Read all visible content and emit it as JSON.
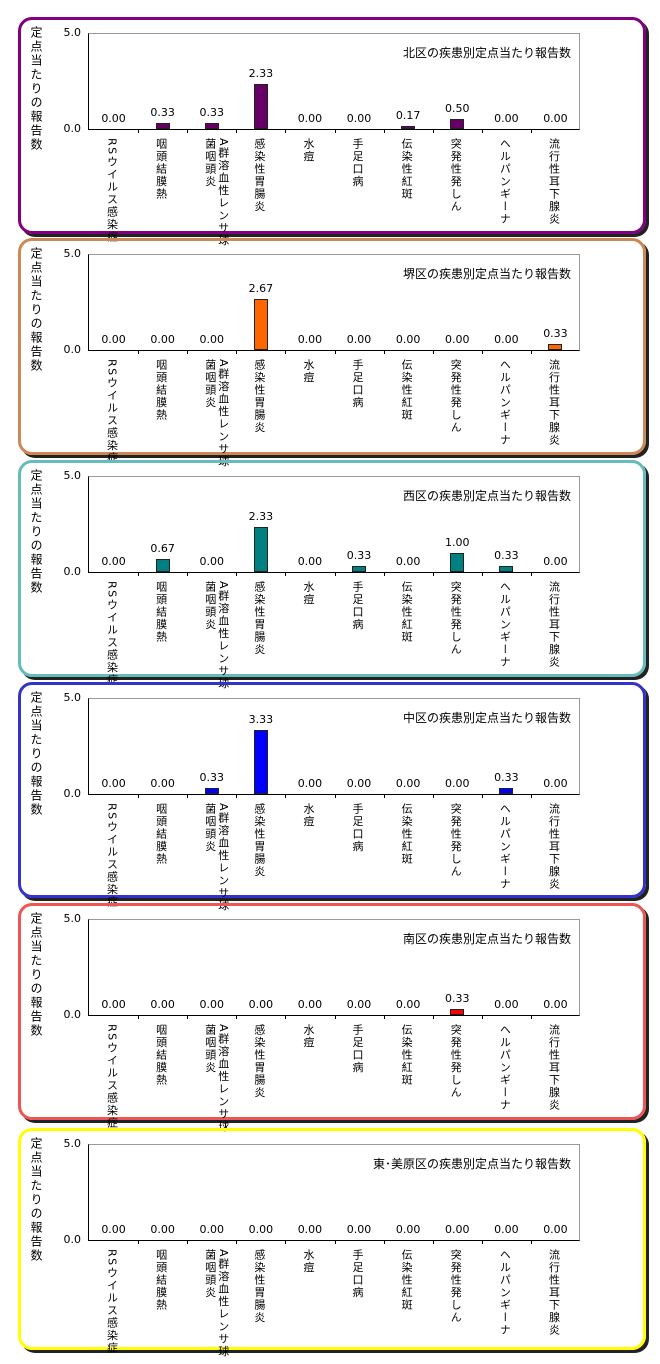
{
  "chart_data": [
    {
      "type": "bar",
      "title": "北区の疾患別定点当たり報告数",
      "ylabel": "定点当たりの報告数",
      "ylim": [
        0,
        5
      ],
      "yticks": [
        "0.0",
        "5.0"
      ],
      "categories": [
        "RSウイルス感染症",
        "咽頭結膜熱",
        "A群溶血性レンサ球菌咽頭炎",
        "感染性胃腸炎",
        "水痘",
        "手足口病",
        "伝染性紅斑",
        "突発性発しん",
        "ヘルパンギーナ",
        "流行性耳下腺炎"
      ],
      "values": [
        0,
        0.33,
        0.33,
        2.33,
        0,
        0,
        0.17,
        0.5,
        0,
        0
      ],
      "labels": [
        "0.00",
        "0.33",
        "0.33",
        "2.33",
        "0.00",
        "0.00",
        "0.17",
        "0.50",
        "0.00",
        "0.00"
      ],
      "bar_color": "#660066",
      "border_color": "#800080"
    },
    {
      "type": "bar",
      "title": "堺区の疾患別定点当たり報告数",
      "ylabel": "定点当たりの報告数",
      "ylim": [
        0,
        5
      ],
      "yticks": [
        "0.0",
        "5.0"
      ],
      "categories": [
        "RSウイルス感染症",
        "咽頭結膜熱",
        "A群溶血性レンサ球菌咽頭炎",
        "感染性胃腸炎",
        "水痘",
        "手足口病",
        "伝染性紅斑",
        "突発性発しん",
        "ヘルパンギーナ",
        "流行性耳下腺炎"
      ],
      "values": [
        0,
        0,
        0,
        2.67,
        0,
        0,
        0,
        0,
        0,
        0.33
      ],
      "labels": [
        "0.00",
        "0.00",
        "0.00",
        "2.67",
        "0.00",
        "0.00",
        "0.00",
        "0.00",
        "0.00",
        "0.33"
      ],
      "bar_color": "#ff6600",
      "border_color": "#cc8855"
    },
    {
      "type": "bar",
      "title": "西区の疾患別定点当たり報告数",
      "ylabel": "定点当たりの報告数",
      "ylim": [
        0,
        5
      ],
      "yticks": [
        "0.0",
        "5.0"
      ],
      "categories": [
        "RSウイルス感染症",
        "咽頭結膜熱",
        "A群溶血性レンサ球菌咽頭炎",
        "感染性胃腸炎",
        "水痘",
        "手足口病",
        "伝染性紅斑",
        "突発性発しん",
        "ヘルパンギーナ",
        "流行性耳下腺炎"
      ],
      "values": [
        0,
        0.67,
        0,
        2.33,
        0,
        0.33,
        0,
        1.0,
        0.33,
        0
      ],
      "labels": [
        "0.00",
        "0.67",
        "0.00",
        "2.33",
        "0.00",
        "0.33",
        "0.00",
        "1.00",
        "0.33",
        "0.00"
      ],
      "bar_color": "#008080",
      "border_color": "#66bbbb"
    },
    {
      "type": "bar",
      "title": "中区の疾患別定点当たり報告数",
      "ylabel": "定点当たりの報告数",
      "ylim": [
        0,
        5
      ],
      "yticks": [
        "0.0",
        "5.0"
      ],
      "categories": [
        "RSウイルス感染症",
        "咽頭結膜熱",
        "A群溶血性レンサ球菌咽頭炎",
        "感染性胃腸炎",
        "水痘",
        "手足口病",
        "伝染性紅斑",
        "突発性発しん",
        "ヘルパンギーナ",
        "流行性耳下腺炎"
      ],
      "values": [
        0,
        0,
        0.33,
        3.33,
        0,
        0,
        0,
        0,
        0.33,
        0
      ],
      "labels": [
        "0.00",
        "0.00",
        "0.33",
        "3.33",
        "0.00",
        "0.00",
        "0.00",
        "0.00",
        "0.33",
        "0.00"
      ],
      "bar_color": "#0000ff",
      "border_color": "#3333cc"
    },
    {
      "type": "bar",
      "title": "南区の疾患別定点当たり報告数",
      "ylabel": "定点当たりの報告数",
      "ylim": [
        0,
        5
      ],
      "yticks": [
        "0.0",
        "5.0"
      ],
      "categories": [
        "RSウイルス感染症",
        "咽頭結膜熱",
        "A群溶血性レンサ球菌咽頭炎",
        "感染性胃腸炎",
        "水痘",
        "手足口病",
        "伝染性紅斑",
        "突発性発しん",
        "ヘルパンギーナ",
        "流行性耳下腺炎"
      ],
      "values": [
        0,
        0,
        0,
        0,
        0,
        0,
        0,
        0.33,
        0,
        0
      ],
      "labels": [
        "0.00",
        "0.00",
        "0.00",
        "0.00",
        "0.00",
        "0.00",
        "0.00",
        "0.33",
        "0.00",
        "0.00"
      ],
      "bar_color": "#ff0000",
      "border_color": "#ee5555"
    },
    {
      "type": "bar",
      "title": "東･美原区の疾患別定点当たり報告数",
      "ylabel": "定点当たりの報告数",
      "ylim": [
        0,
        5
      ],
      "yticks": [
        "0.0",
        "5.0"
      ],
      "categories": [
        "RSウイルス感染症",
        "咽頭結膜熱",
        "A群溶血性レンサ球菌咽頭炎",
        "感染性胃腸炎",
        "水痘",
        "手足口病",
        "伝染性紅斑",
        "突発性発しん",
        "ヘルパンギーナ",
        "流行性耳下腺炎"
      ],
      "values": [
        0,
        0,
        0,
        0,
        0,
        0,
        0,
        0,
        0,
        0
      ],
      "labels": [
        "0.00",
        "0.00",
        "0.00",
        "0.00",
        "0.00",
        "0.00",
        "0.00",
        "0.00",
        "0.00",
        "0.00"
      ],
      "bar_color": "#ffff00",
      "border_color": "#ffff00"
    }
  ]
}
